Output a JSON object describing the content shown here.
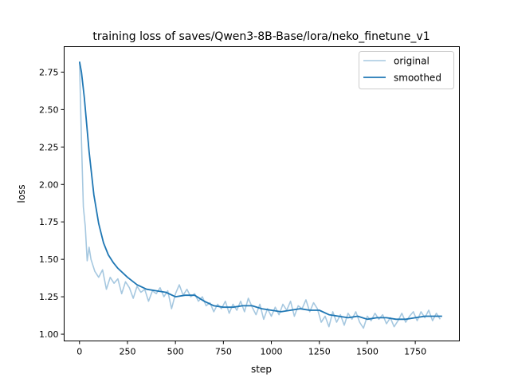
{
  "chart_data": {
    "type": "line",
    "title": "training loss of saves/Qwen3-8B-Base/lora/neko_finetune_v1",
    "xlabel": "step",
    "ylabel": "loss",
    "xlim": [
      -80,
      1980
    ],
    "ylim": [
      0.955,
      2.92
    ],
    "xticks": [
      0,
      250,
      500,
      750,
      1000,
      1250,
      1500,
      1750
    ],
    "yticks": [
      1.0,
      1.25,
      1.5,
      1.75,
      2.0,
      2.25,
      2.5,
      2.75
    ],
    "xtick_labels": [
      "0",
      "250",
      "500",
      "750",
      "1000",
      "1250",
      "1500",
      "1750"
    ],
    "ytick_labels": [
      "1.00",
      "1.25",
      "1.50",
      "1.75",
      "2.00",
      "2.25",
      "2.50",
      "2.75"
    ],
    "legend": {
      "placement": "top-right",
      "entries": [
        "original",
        "smoothed"
      ]
    },
    "series": [
      {
        "name": "original",
        "color": "#a6c8e0",
        "x": [
          0,
          10,
          20,
          30,
          40,
          50,
          60,
          80,
          100,
          120,
          140,
          160,
          180,
          200,
          220,
          240,
          260,
          280,
          300,
          320,
          340,
          360,
          380,
          400,
          420,
          440,
          460,
          480,
          500,
          520,
          540,
          560,
          580,
          600,
          620,
          640,
          660,
          680,
          700,
          720,
          740,
          760,
          780,
          800,
          820,
          840,
          860,
          880,
          900,
          920,
          940,
          960,
          980,
          1000,
          1020,
          1040,
          1060,
          1080,
          1100,
          1120,
          1140,
          1160,
          1180,
          1200,
          1220,
          1240,
          1260,
          1280,
          1300,
          1320,
          1340,
          1360,
          1380,
          1400,
          1420,
          1440,
          1460,
          1480,
          1500,
          1520,
          1540,
          1560,
          1580,
          1600,
          1620,
          1640,
          1660,
          1680,
          1700,
          1720,
          1740,
          1760,
          1780,
          1800,
          1820,
          1840,
          1860,
          1880
        ],
        "y": [
          2.82,
          2.3,
          1.85,
          1.72,
          1.49,
          1.58,
          1.5,
          1.42,
          1.38,
          1.43,
          1.3,
          1.38,
          1.34,
          1.37,
          1.27,
          1.35,
          1.31,
          1.24,
          1.32,
          1.28,
          1.3,
          1.22,
          1.29,
          1.27,
          1.31,
          1.25,
          1.29,
          1.17,
          1.27,
          1.33,
          1.26,
          1.3,
          1.25,
          1.27,
          1.22,
          1.25,
          1.19,
          1.21,
          1.15,
          1.2,
          1.17,
          1.22,
          1.14,
          1.2,
          1.16,
          1.22,
          1.15,
          1.24,
          1.18,
          1.13,
          1.2,
          1.1,
          1.17,
          1.12,
          1.18,
          1.13,
          1.2,
          1.16,
          1.22,
          1.12,
          1.19,
          1.17,
          1.23,
          1.15,
          1.21,
          1.17,
          1.08,
          1.12,
          1.05,
          1.15,
          1.08,
          1.13,
          1.06,
          1.14,
          1.1,
          1.15,
          1.08,
          1.04,
          1.12,
          1.09,
          1.14,
          1.1,
          1.13,
          1.07,
          1.11,
          1.05,
          1.09,
          1.14,
          1.08,
          1.12,
          1.15,
          1.09,
          1.15,
          1.11,
          1.16,
          1.09,
          1.14,
          1.1
        ]
      },
      {
        "name": "smoothed",
        "color": "#1f77b4",
        "x": [
          0,
          10,
          25,
          50,
          75,
          100,
          125,
          150,
          175,
          200,
          250,
          300,
          350,
          400,
          450,
          500,
          550,
          600,
          650,
          700,
          750,
          800,
          850,
          900,
          950,
          1000,
          1050,
          1100,
          1150,
          1200,
          1250,
          1300,
          1350,
          1400,
          1450,
          1500,
          1550,
          1600,
          1650,
          1700,
          1750,
          1800,
          1850,
          1890
        ],
        "y": [
          2.82,
          2.75,
          2.58,
          2.22,
          1.93,
          1.74,
          1.61,
          1.53,
          1.48,
          1.44,
          1.38,
          1.33,
          1.3,
          1.29,
          1.28,
          1.25,
          1.26,
          1.26,
          1.22,
          1.19,
          1.18,
          1.18,
          1.19,
          1.19,
          1.17,
          1.16,
          1.15,
          1.16,
          1.17,
          1.16,
          1.16,
          1.13,
          1.12,
          1.11,
          1.12,
          1.1,
          1.11,
          1.11,
          1.1,
          1.1,
          1.11,
          1.12,
          1.12,
          1.12
        ]
      }
    ]
  }
}
